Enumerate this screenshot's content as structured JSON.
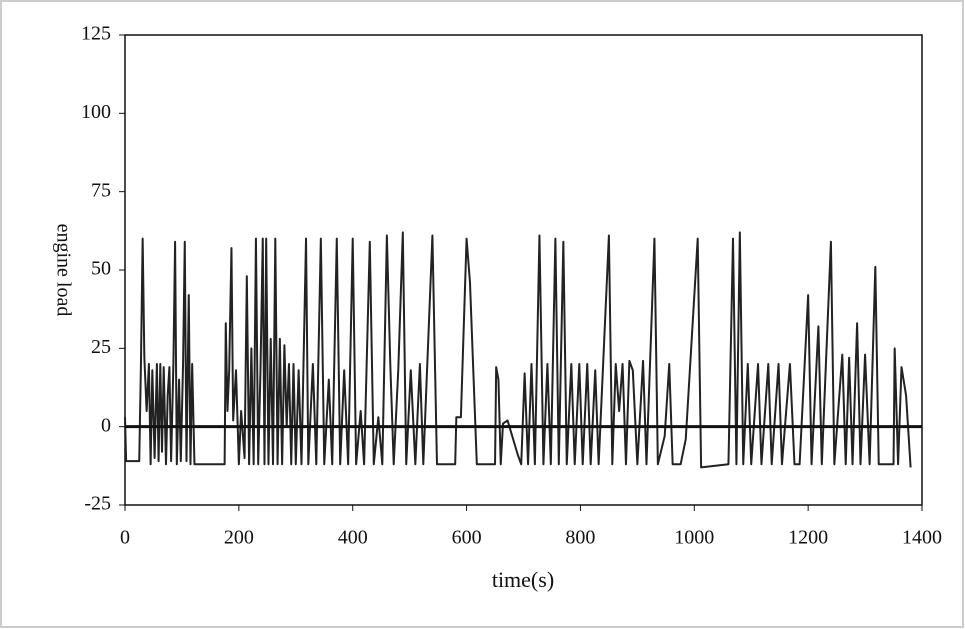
{
  "chart_data": {
    "type": "line",
    "xlabel": "time(s)",
    "ylabel": "engine load",
    "xlim": [
      0,
      1400
    ],
    "xticks": [
      0,
      200,
      400,
      600,
      800,
      1000,
      1200,
      1400
    ],
    "ylim": [
      -25,
      125
    ],
    "yticks": [
      -25,
      0,
      25,
      50,
      75,
      100,
      125
    ],
    "reference_line": 0,
    "x": [
      0,
      2,
      25,
      28,
      31,
      34,
      38,
      42,
      45,
      48,
      52,
      56,
      59,
      62,
      65,
      68,
      72,
      75,
      78,
      81,
      85,
      88,
      91,
      95,
      98,
      102,
      105,
      108,
      112,
      115,
      118,
      122,
      175,
      177,
      180,
      183,
      187,
      190,
      195,
      200,
      204,
      210,
      214,
      218,
      222,
      226,
      230,
      234,
      238,
      242,
      245,
      248,
      252,
      256,
      260,
      264,
      268,
      272,
      276,
      280,
      284,
      288,
      292,
      296,
      300,
      305,
      310,
      318,
      322,
      330,
      336,
      344,
      350,
      358,
      364,
      372,
      378,
      385,
      392,
      400,
      406,
      414,
      420,
      430,
      437,
      445,
      452,
      460,
      466,
      472,
      480,
      488,
      494,
      502,
      510,
      518,
      524,
      540,
      548,
      580,
      582,
      590,
      600,
      606,
      618,
      650,
      652,
      656,
      660,
      664,
      672,
      690,
      696,
      702,
      708,
      714,
      720,
      728,
      735,
      742,
      748,
      756,
      762,
      770,
      776,
      784,
      790,
      798,
      804,
      812,
      818,
      826,
      832,
      850,
      856,
      862,
      868,
      874,
      880,
      886,
      892,
      900,
      910,
      916,
      930,
      936,
      948,
      956,
      962,
      976,
      985,
      1006,
      1012,
      1060,
      1068,
      1074,
      1080,
      1086,
      1094,
      1100,
      1112,
      1118,
      1130,
      1136,
      1148,
      1154,
      1168,
      1176,
      1185,
      1200,
      1206,
      1218,
      1224,
      1240,
      1246,
      1260,
      1266,
      1272,
      1278,
      1286,
      1292,
      1300,
      1308,
      1318,
      1324,
      1350,
      1352,
      1358,
      1364,
      1372,
      1380
    ],
    "series": [
      {
        "color": "#222222",
        "values": [
          3,
          -11,
          -11,
          20,
          60,
          22,
          5,
          20,
          -12,
          18,
          -10,
          20,
          -11,
          20,
          -8,
          19,
          -12,
          10,
          19,
          -11,
          20,
          59,
          -12,
          15,
          -11,
          20,
          59,
          -11,
          42,
          -12,
          20,
          -12,
          -12,
          33,
          5,
          18,
          57,
          2,
          18,
          -12,
          5,
          -10,
          48,
          -12,
          25,
          -12,
          60,
          -12,
          18,
          60,
          -12,
          60,
          -12,
          28,
          -12,
          60,
          -12,
          28,
          -12,
          26,
          0,
          20,
          -12,
          20,
          -12,
          18,
          -12,
          60,
          -12,
          20,
          -12,
          60,
          -12,
          15,
          -12,
          60,
          -12,
          18,
          -12,
          60,
          -12,
          5,
          -12,
          59,
          -12,
          3,
          -12,
          61,
          20,
          -12,
          18,
          62,
          -12,
          18,
          -12,
          20,
          -12,
          61,
          -12,
          -12,
          3,
          3,
          60,
          46,
          -12,
          -12,
          19,
          15,
          -12,
          1,
          2,
          -9,
          -12,
          17,
          -12,
          20,
          -12,
          61,
          -12,
          20,
          -12,
          60,
          -12,
          59,
          -12,
          20,
          -12,
          20,
          -12,
          20,
          -12,
          18,
          -12,
          61,
          -12,
          20,
          5,
          20,
          -12,
          21,
          18,
          -12,
          21,
          -12,
          60,
          -12,
          -3,
          20,
          -12,
          -12,
          -4,
          60,
          -13,
          -12,
          60,
          -12,
          62,
          -12,
          20,
          -12,
          20,
          -12,
          20,
          -12,
          20,
          -12,
          20,
          -12,
          -12,
          42,
          -12,
          32,
          -12,
          59,
          -12,
          23,
          -12,
          22,
          -12,
          33,
          -12,
          23,
          -12,
          51,
          -12,
          -12,
          25,
          -12,
          19,
          10,
          -13
        ]
      }
    ]
  }
}
